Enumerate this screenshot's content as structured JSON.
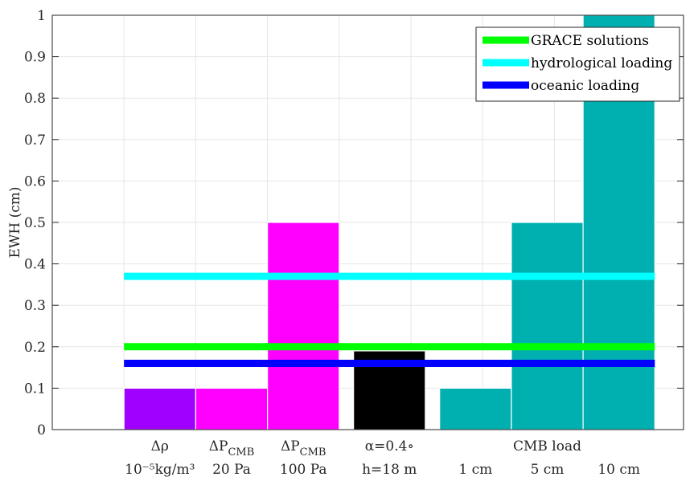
{
  "chart_data": {
    "type": "bar",
    "ylabel": "EWH (cm)",
    "ylim": [
      0,
      1
    ],
    "yticks": [
      "0",
      "0.1",
      "0.2",
      "0.3",
      "0.4",
      "0.5",
      "0.6",
      "0.7",
      "0.8",
      "0.9",
      "1"
    ],
    "grid": true,
    "bars": [
      {
        "x": 1.5,
        "value": 0.1,
        "color": "#a000ff"
      },
      {
        "x": 2.5,
        "value": 0.1,
        "color": "#ff00ff"
      },
      {
        "x": 3.5,
        "value": 0.5,
        "color": "#ff00ff"
      },
      {
        "x": 4.7,
        "value": 0.19,
        "color": "#000000"
      },
      {
        "x": 5.9,
        "value": 0.1,
        "color": "#00b0b0"
      },
      {
        "x": 6.9,
        "value": 0.5,
        "color": "#00b0b0"
      },
      {
        "x": 7.9,
        "value": 1.0,
        "color": "#00b0b0"
      }
    ],
    "bar_width": 1.0,
    "xlim": [
      0,
      8.8
    ],
    "reference_lines": [
      {
        "name": "GRACE solutions",
        "value": 0.2,
        "color": "#00ff00",
        "x_from": 1,
        "x_to": 8.4
      },
      {
        "name": "hydrological loading",
        "value": 0.37,
        "color": "#00ffff",
        "x_from": 1,
        "x_to": 8.4
      },
      {
        "name": "oceanic loading",
        "value": 0.16,
        "color": "#0000ff",
        "x_from": 1,
        "x_to": 8.4
      }
    ],
    "legend_position": "top-right",
    "category_labels": [
      {
        "x": 1.5,
        "line1": "Δρ",
        "line2": "10⁻⁵kg/m³"
      },
      {
        "x": 2.5,
        "line1": "ΔP",
        "line1_sub": "CMB",
        "line2": "20 Pa"
      },
      {
        "x": 3.5,
        "line1": "ΔP",
        "line1_sub": "CMB",
        "line2": "100 Pa"
      },
      {
        "x": 4.7,
        "line1": "α=0.4∘",
        "line2": "h=18 m"
      },
      {
        "x": 5.9,
        "line1": "",
        "line2": "1 cm"
      },
      {
        "x": 6.9,
        "line1": "CMB load",
        "line2": "5 cm"
      },
      {
        "x": 7.9,
        "line1": "",
        "line2": "10 cm"
      }
    ]
  }
}
